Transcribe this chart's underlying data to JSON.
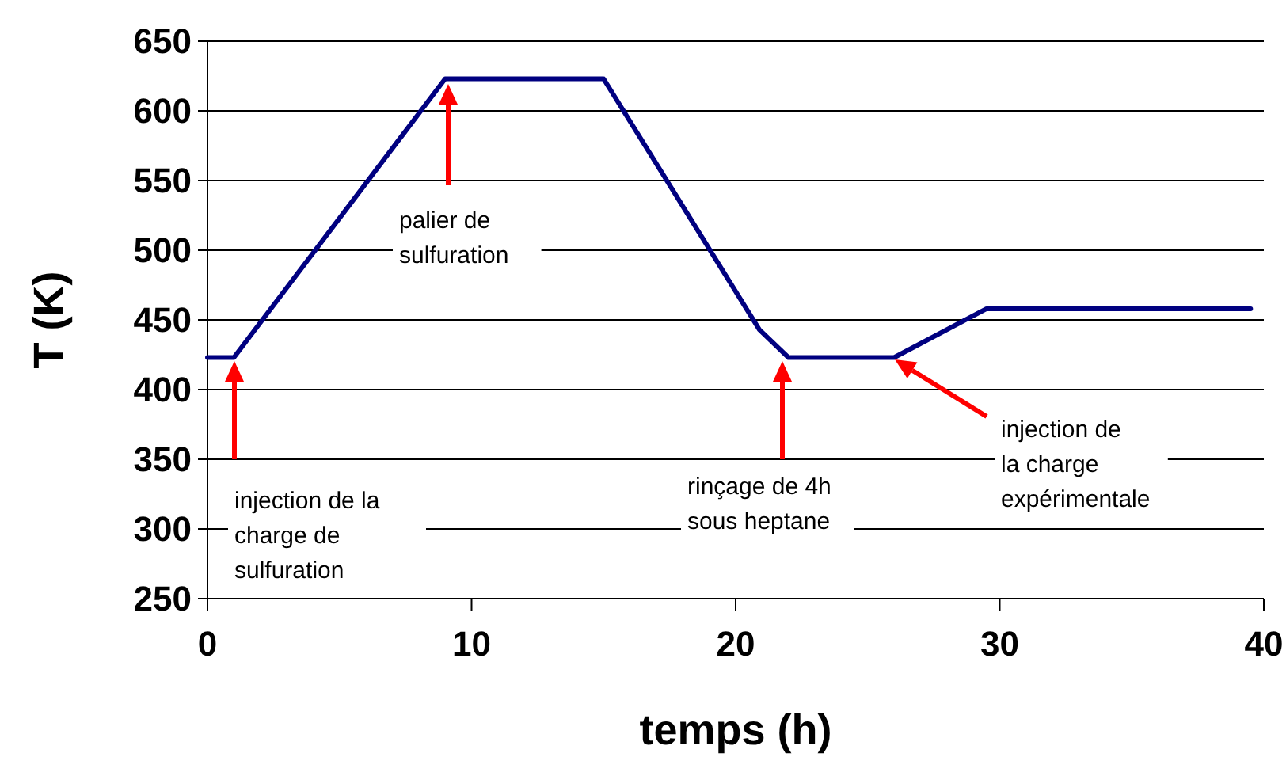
{
  "chart_data": {
    "type": "line",
    "xlabel": "temps (h)",
    "ylabel": "T (K)",
    "x": [
      0,
      1,
      9,
      15,
      20.9,
      22,
      26,
      29.5,
      39.5
    ],
    "series": [
      {
        "color": "#000080",
        "values": [
          423,
          423,
          623,
          623,
          443,
          423,
          423,
          458,
          458
        ]
      }
    ],
    "xlim": [
      0,
      40
    ],
    "xticks": [
      0,
      10,
      20,
      30,
      40
    ],
    "ylim": [
      250,
      650
    ],
    "yticks": [
      250,
      300,
      350,
      400,
      450,
      500,
      550,
      600,
      650
    ],
    "grid": "y",
    "marker": "none",
    "line_style": "solid",
    "annotations": [
      "injection de la\ncharge de\nsulfuration",
      "palier de\nsulfuration",
      "rinçage de 4h\nsous heptane",
      "injection de\nla charge\nexpérimentale"
    ]
  }
}
